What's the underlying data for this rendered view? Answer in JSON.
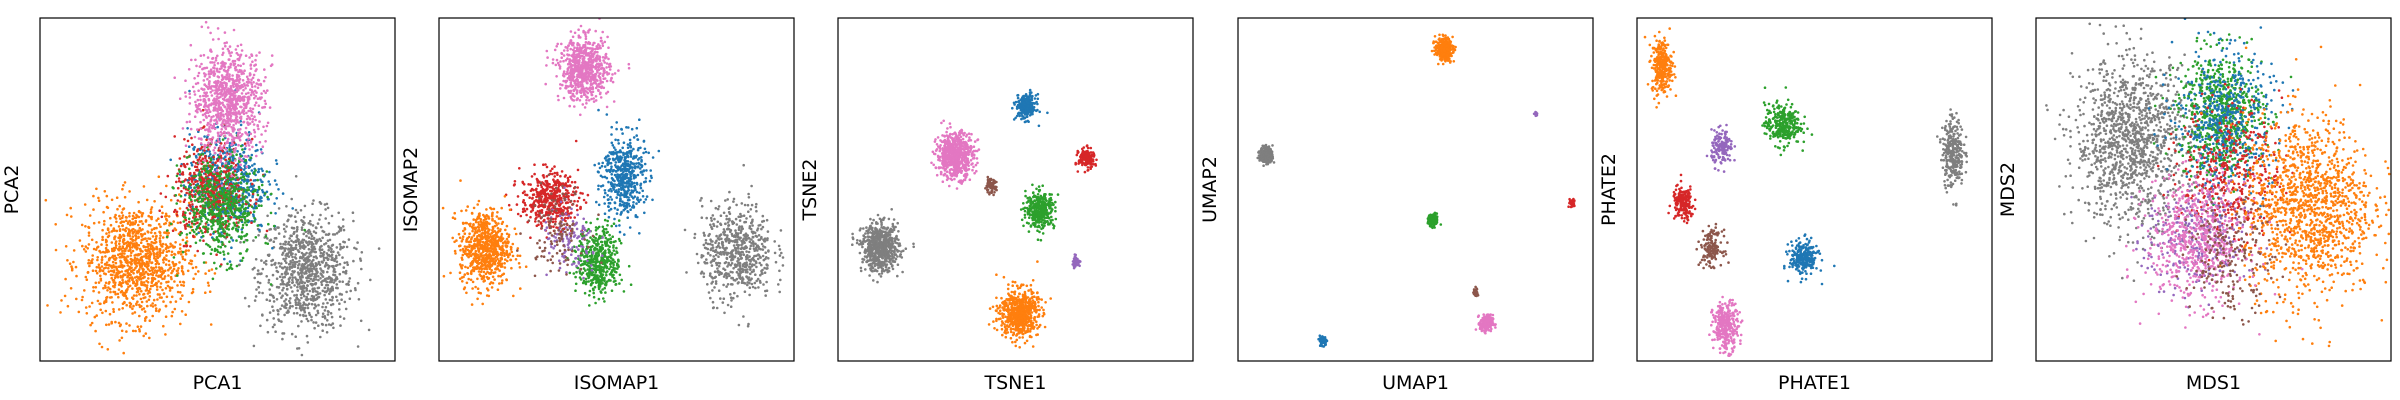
{
  "figure": {
    "colors": {
      "blue": "#1f77b4",
      "orange": "#ff7f0e",
      "green": "#2ca02c",
      "red": "#d62728",
      "purple": "#9467bd",
      "brown": "#8c564b",
      "pink": "#e377c2",
      "gray": "#7f7f7f"
    }
  },
  "chart_data": [
    {
      "type": "scatter",
      "xlabel": "PCA1",
      "ylabel": "PCA2",
      "xlim": [
        0,
        1
      ],
      "ylim": [
        0,
        1
      ],
      "grid": false,
      "ticks": false,
      "clusters": [
        {
          "color": "gray",
          "cx": 0.75,
          "cy": 0.26,
          "sx": 0.065,
          "sy": 0.085,
          "n": 900
        },
        {
          "color": "orange",
          "cx": 0.27,
          "cy": 0.29,
          "sx": 0.075,
          "sy": 0.085,
          "n": 1100
        },
        {
          "color": "blue",
          "cx": 0.53,
          "cy": 0.52,
          "sx": 0.055,
          "sy": 0.075,
          "n": 600
        },
        {
          "color": "red",
          "cx": 0.48,
          "cy": 0.5,
          "sx": 0.05,
          "sy": 0.07,
          "n": 500
        },
        {
          "color": "green",
          "cx": 0.51,
          "cy": 0.45,
          "sx": 0.055,
          "sy": 0.075,
          "n": 600
        },
        {
          "color": "pink",
          "cx": 0.53,
          "cy": 0.76,
          "sx": 0.05,
          "sy": 0.075,
          "n": 900
        }
      ]
    },
    {
      "type": "scatter",
      "xlabel": "ISOMAP1",
      "ylabel": "ISOMAP2",
      "xlim": [
        0,
        1
      ],
      "ylim": [
        0,
        1
      ],
      "grid": false,
      "ticks": false,
      "clusters": [
        {
          "color": "pink",
          "cx": 0.41,
          "cy": 0.85,
          "sx": 0.035,
          "sy": 0.045,
          "n": 700
        },
        {
          "color": "blue",
          "cx": 0.52,
          "cy": 0.54,
          "sx": 0.03,
          "sy": 0.06,
          "n": 500
        },
        {
          "color": "red",
          "cx": 0.31,
          "cy": 0.47,
          "sx": 0.04,
          "sy": 0.04,
          "n": 450
        },
        {
          "color": "green",
          "cx": 0.45,
          "cy": 0.29,
          "sx": 0.03,
          "sy": 0.05,
          "n": 500
        },
        {
          "color": "orange",
          "cx": 0.13,
          "cy": 0.33,
          "sx": 0.035,
          "sy": 0.055,
          "n": 700
        },
        {
          "color": "gray",
          "cx": 0.84,
          "cy": 0.32,
          "sx": 0.05,
          "sy": 0.07,
          "n": 600
        },
        {
          "color": "purple",
          "cx": 0.37,
          "cy": 0.34,
          "sx": 0.04,
          "sy": 0.05,
          "n": 120
        },
        {
          "color": "brown",
          "cx": 0.33,
          "cy": 0.39,
          "sx": 0.04,
          "sy": 0.06,
          "n": 120
        }
      ]
    },
    {
      "type": "scatter",
      "xlabel": "TSNE1",
      "ylabel": "TSNE2",
      "xlim": [
        0,
        1
      ],
      "ylim": [
        0,
        1
      ],
      "grid": false,
      "ticks": false,
      "clusters": [
        {
          "color": "blue",
          "cx": 0.53,
          "cy": 0.74,
          "sx": 0.014,
          "sy": 0.018,
          "n": 250
        },
        {
          "color": "red",
          "cx": 0.7,
          "cy": 0.59,
          "sx": 0.011,
          "sy": 0.014,
          "n": 180
        },
        {
          "color": "pink",
          "cx": 0.33,
          "cy": 0.6,
          "sx": 0.026,
          "sy": 0.033,
          "n": 650
        },
        {
          "color": "brown",
          "cx": 0.43,
          "cy": 0.51,
          "sx": 0.008,
          "sy": 0.01,
          "n": 70
        },
        {
          "color": "green",
          "cx": 0.57,
          "cy": 0.44,
          "sx": 0.02,
          "sy": 0.026,
          "n": 380
        },
        {
          "color": "gray",
          "cx": 0.12,
          "cy": 0.33,
          "sx": 0.026,
          "sy": 0.034,
          "n": 650
        },
        {
          "color": "purple",
          "cx": 0.67,
          "cy": 0.29,
          "sx": 0.006,
          "sy": 0.008,
          "n": 40
        },
        {
          "color": "orange",
          "cx": 0.51,
          "cy": 0.14,
          "sx": 0.027,
          "sy": 0.035,
          "n": 650
        }
      ]
    },
    {
      "type": "scatter",
      "xlabel": "UMAP1",
      "ylabel": "UMAP2",
      "xlim": [
        0,
        1
      ],
      "ylim": [
        0,
        1
      ],
      "grid": false,
      "ticks": false,
      "clusters": [
        {
          "color": "orange",
          "cx": 0.58,
          "cy": 0.91,
          "sx": 0.012,
          "sy": 0.016,
          "n": 300
        },
        {
          "color": "gray",
          "cx": 0.08,
          "cy": 0.6,
          "sx": 0.009,
          "sy": 0.012,
          "n": 250
        },
        {
          "color": "purple",
          "cx": 0.84,
          "cy": 0.72,
          "sx": 0.002,
          "sy": 0.003,
          "n": 20
        },
        {
          "color": "red",
          "cx": 0.94,
          "cy": 0.46,
          "sx": 0.004,
          "sy": 0.006,
          "n": 40
        },
        {
          "color": "green",
          "cx": 0.55,
          "cy": 0.41,
          "sx": 0.007,
          "sy": 0.009,
          "n": 150
        },
        {
          "color": "brown",
          "cx": 0.67,
          "cy": 0.2,
          "sx": 0.003,
          "sy": 0.008,
          "n": 30
        },
        {
          "color": "pink",
          "cx": 0.7,
          "cy": 0.11,
          "sx": 0.009,
          "sy": 0.012,
          "n": 200
        },
        {
          "color": "blue",
          "cx": 0.24,
          "cy": 0.06,
          "sx": 0.005,
          "sy": 0.007,
          "n": 100
        }
      ]
    },
    {
      "type": "scatter",
      "xlabel": "PHATE1",
      "ylabel": "PHATE2",
      "xlim": [
        0,
        1
      ],
      "ylim": [
        0,
        1
      ],
      "grid": false,
      "ticks": false,
      "clusters": [
        {
          "color": "orange",
          "cx": 0.07,
          "cy": 0.86,
          "sx": 0.014,
          "sy": 0.04,
          "n": 300
        },
        {
          "color": "green",
          "cx": 0.41,
          "cy": 0.69,
          "sx": 0.025,
          "sy": 0.03,
          "n": 300
        },
        {
          "color": "gray",
          "cx": 0.89,
          "cy": 0.61,
          "sx": 0.015,
          "sy": 0.05,
          "n": 300
        },
        {
          "color": "purple",
          "cx": 0.24,
          "cy": 0.62,
          "sx": 0.015,
          "sy": 0.025,
          "n": 150
        },
        {
          "color": "red",
          "cx": 0.13,
          "cy": 0.46,
          "sx": 0.015,
          "sy": 0.025,
          "n": 180
        },
        {
          "color": "brown",
          "cx": 0.21,
          "cy": 0.33,
          "sx": 0.015,
          "sy": 0.025,
          "n": 150
        },
        {
          "color": "blue",
          "cx": 0.47,
          "cy": 0.3,
          "sx": 0.02,
          "sy": 0.025,
          "n": 250
        },
        {
          "color": "pink",
          "cx": 0.25,
          "cy": 0.1,
          "sx": 0.018,
          "sy": 0.035,
          "n": 300
        }
      ]
    },
    {
      "type": "scatter",
      "xlabel": "MDS1",
      "ylabel": "MDS2",
      "xlim": [
        0,
        1
      ],
      "ylim": [
        0,
        1
      ],
      "grid": false,
      "ticks": false,
      "clusters": [
        {
          "color": "gray",
          "cx": 0.27,
          "cy": 0.64,
          "sx": 0.08,
          "sy": 0.12,
          "n": 1200
        },
        {
          "color": "green",
          "cx": 0.52,
          "cy": 0.72,
          "sx": 0.06,
          "sy": 0.09,
          "n": 700
        },
        {
          "color": "blue",
          "cx": 0.53,
          "cy": 0.7,
          "sx": 0.07,
          "sy": 0.1,
          "n": 500
        },
        {
          "color": "red",
          "cx": 0.55,
          "cy": 0.55,
          "sx": 0.07,
          "sy": 0.1,
          "n": 400
        },
        {
          "color": "purple",
          "cx": 0.45,
          "cy": 0.35,
          "sx": 0.07,
          "sy": 0.08,
          "n": 300
        },
        {
          "color": "orange",
          "cx": 0.77,
          "cy": 0.45,
          "sx": 0.09,
          "sy": 0.13,
          "n": 1300
        },
        {
          "color": "pink",
          "cx": 0.45,
          "cy": 0.35,
          "sx": 0.07,
          "sy": 0.09,
          "n": 600
        },
        {
          "color": "brown",
          "cx": 0.55,
          "cy": 0.3,
          "sx": 0.06,
          "sy": 0.08,
          "n": 200
        }
      ]
    }
  ]
}
